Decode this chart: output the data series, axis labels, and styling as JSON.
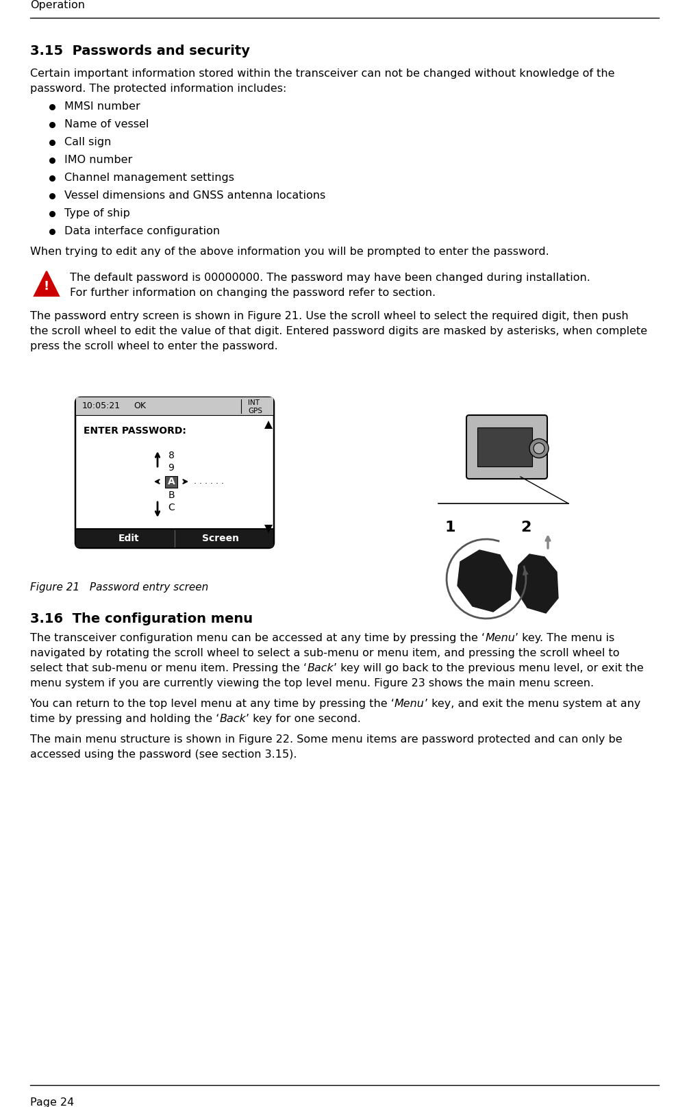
{
  "page_header": "Operation",
  "page_footer": "Page 24",
  "section_315_title": "3.15  Passwords and security",
  "section_315_intro_1": "Certain important information stored within the transceiver can not be changed without knowledge of the",
  "section_315_intro_2": "password. The protected information includes:",
  "bullet_items": [
    "MMSI number",
    "Name of vessel",
    "Call sign",
    "IMO number",
    "Channel management settings",
    "Vessel dimensions and GNSS antenna locations",
    "Type of ship",
    "Data interface configuration"
  ],
  "when_trying": "When trying to edit any of the above information you will be prompted to enter the password.",
  "warning_text_line1": "The default password is 00000000. The password may have been changed during installation.",
  "warning_text_line2": "For further information on changing the password refer to section.",
  "para_after_warning_1": "The password entry screen is shown in Figure 21. Use the scroll wheel to select the required digit, then push",
  "para_after_warning_2": "the scroll wheel to edit the value of that digit. Entered password digits are masked by asterisks, when complete",
  "para_after_warning_3": "press the scroll wheel to enter the password.",
  "figure21_caption": "Figure 21   Password entry screen",
  "section_316_title": "3.16  The configuration menu",
  "s316_p1_l1": "The transceiver configuration menu can be accessed at any time by pressing the ‘",
  "s316_p1_l1_i": "Menu",
  "s316_p1_l1_b": "’ key. The menu is",
  "s316_p1_l2": "navigated by rotating the scroll wheel to select a sub-menu or menu item, and pressing the scroll wheel to",
  "s316_p1_l3": "select that sub-menu or menu item. Pressing the ‘",
  "s316_p1_l3_i": "Back",
  "s316_p1_l3_b": "’ key will go back to the previous menu level, or exit the",
  "s316_p1_l4": "menu system if you are currently viewing the top level menu. Figure 23 shows the main menu screen.",
  "s316_p2_l1": "You can return to the top level menu at any time by pressing the ‘",
  "s316_p2_l1_i": "Menu",
  "s316_p2_l1_b": "’ key, and exit the menu system at any",
  "s316_p2_l2": "time by pressing and holding the ‘",
  "s316_p2_l2_i": "Back",
  "s316_p2_l2_b": "’ key for one second.",
  "s316_p3_l1": "The main menu structure is shown in Figure 22. Some menu items are password protected and can only be",
  "s316_p3_l2": "accessed using the password (see section 3.15).",
  "bg_color": "#ffffff",
  "text_color": "#000000",
  "header_line_color": "#000000",
  "warning_triangle_red": "#cc0000",
  "screen_header_bg": "#c8c8c8",
  "screen_footer_bg": "#1a1a1a",
  "screen_footer_text": "#ffffff"
}
